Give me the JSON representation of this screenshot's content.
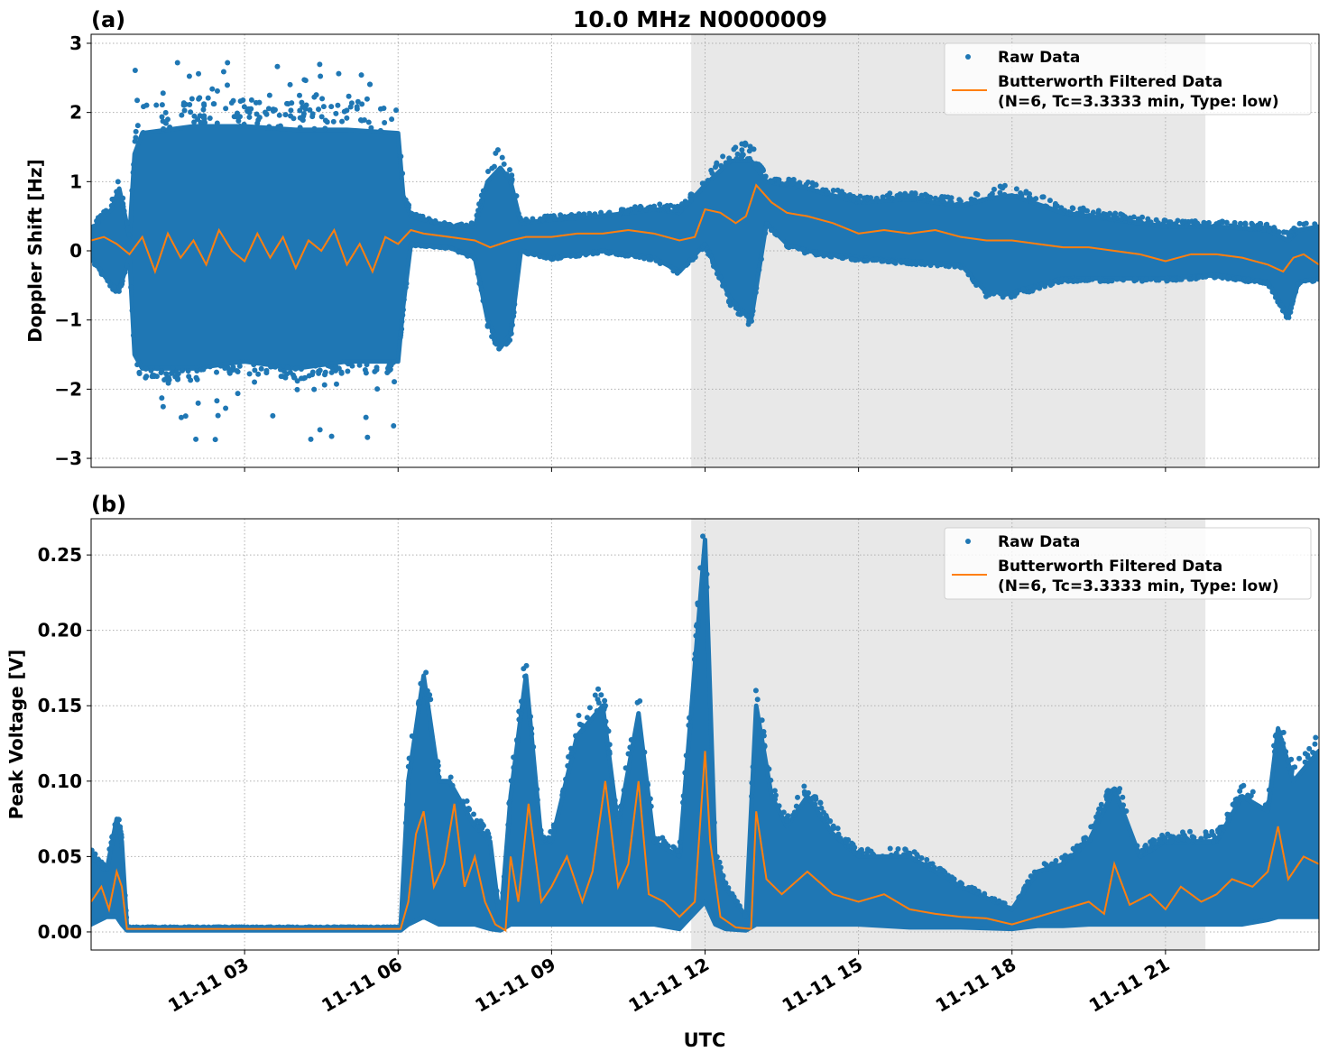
{
  "title": "10.0 MHz N0000009",
  "xlabel": "UTC",
  "colors": {
    "raw": "#1f77b4",
    "filtered": "#ff7f0e",
    "shade": "#e8e8e8"
  },
  "chart_data": [
    {
      "type": "scatter+line",
      "panel_label": "(a)",
      "ylabel": "Doppler Shift [Hz]",
      "xlim_hours_utc": [
        0,
        24
      ],
      "ylim": [
        -3.13,
        3.13
      ],
      "yticks": [
        3,
        2,
        1,
        0,
        -1,
        -2,
        -3
      ],
      "ytick_labels": [
        "3",
        "2",
        "1",
        "0",
        "−1",
        "−2",
        "−3"
      ],
      "xticks_hours": [
        3,
        6,
        9,
        12,
        15,
        18,
        21
      ],
      "xtick_labels": [
        "11-11 03",
        "11-11 06",
        "11-11 09",
        "11-11 12",
        "11-11 15",
        "11-11 18",
        "11-11 21"
      ],
      "grid": true,
      "shaded_interval_hours": [
        11.73,
        21.78
      ],
      "legend": {
        "placement": "top-right",
        "entries": [
          "Raw Data",
          "Butterworth Filtered Data",
          "(N=6, Tc=3.3333 min, Type: low)"
        ]
      },
      "raw_envelope": {
        "x": [
          0,
          0.4,
          0.55,
          0.75,
          0.85,
          1,
          2,
          3,
          4,
          5,
          6,
          6.1,
          6.25,
          7,
          7.5,
          7.75,
          8,
          8.2,
          8.4,
          9,
          10,
          11,
          11.5,
          12,
          12.5,
          12.9,
          13.2,
          13.6,
          14,
          15,
          16,
          17,
          17.5,
          18,
          19,
          20,
          21,
          22,
          23,
          23.4,
          23.6,
          24
        ],
        "low": [
          -0.1,
          -0.5,
          -0.55,
          -0.1,
          -1.5,
          -1.7,
          -1.7,
          -1.6,
          -1.7,
          -1.6,
          -1.6,
          -0.8,
          0.1,
          0.05,
          -0.1,
          -1.0,
          -1.4,
          -1.2,
          0.0,
          -0.1,
          0.0,
          -0.1,
          -0.3,
          0.1,
          -0.7,
          -1.0,
          0.4,
          0.1,
          0.0,
          -0.1,
          -0.15,
          -0.2,
          -0.6,
          -0.6,
          -0.4,
          -0.4,
          -0.4,
          -0.35,
          -0.45,
          -0.95,
          -0.45,
          -0.4
        ],
        "high": [
          0.3,
          0.6,
          0.9,
          0.2,
          1.4,
          1.7,
          1.8,
          1.8,
          1.75,
          1.75,
          1.7,
          0.8,
          0.5,
          0.35,
          0.35,
          1.0,
          1.2,
          1.0,
          0.4,
          0.45,
          0.5,
          0.6,
          0.55,
          0.95,
          1.3,
          1.3,
          1.0,
          0.95,
          0.9,
          0.7,
          0.75,
          0.65,
          0.75,
          0.8,
          0.55,
          0.45,
          0.35,
          0.35,
          0.3,
          0.15,
          0.3,
          0.35
        ],
        "outliers_low": -2.85,
        "outliers_high": 2.85
      },
      "filtered": {
        "x": [
          0,
          0.25,
          0.5,
          0.75,
          1.0,
          1.25,
          1.5,
          1.75,
          2.0,
          2.25,
          2.5,
          2.75,
          3.0,
          3.25,
          3.5,
          3.75,
          4.0,
          4.25,
          4.5,
          4.75,
          5.0,
          5.25,
          5.5,
          5.75,
          6.0,
          6.25,
          6.5,
          7.0,
          7.5,
          7.8,
          8.0,
          8.2,
          8.5,
          9.0,
          9.5,
          10.0,
          10.5,
          11.0,
          11.5,
          11.8,
          12.0,
          12.3,
          12.6,
          12.8,
          13.0,
          13.3,
          13.6,
          14.0,
          14.5,
          15.0,
          15.5,
          16.0,
          16.5,
          17.0,
          17.5,
          18.0,
          18.5,
          19.0,
          19.5,
          20.0,
          20.5,
          21.0,
          21.5,
          22.0,
          22.5,
          23.0,
          23.3,
          23.5,
          23.7,
          24.0
        ],
        "y": [
          0.15,
          0.2,
          0.1,
          -0.05,
          0.2,
          -0.3,
          0.25,
          -0.1,
          0.15,
          -0.2,
          0.3,
          0.0,
          -0.15,
          0.25,
          -0.1,
          0.2,
          -0.25,
          0.15,
          0.0,
          0.3,
          -0.2,
          0.1,
          -0.3,
          0.2,
          0.1,
          0.3,
          0.25,
          0.2,
          0.15,
          0.05,
          0.1,
          0.15,
          0.2,
          0.2,
          0.25,
          0.25,
          0.3,
          0.25,
          0.15,
          0.2,
          0.6,
          0.55,
          0.4,
          0.5,
          0.95,
          0.7,
          0.55,
          0.5,
          0.4,
          0.25,
          0.3,
          0.25,
          0.3,
          0.2,
          0.15,
          0.15,
          0.1,
          0.05,
          0.05,
          0.0,
          -0.05,
          -0.15,
          -0.05,
          -0.05,
          -0.1,
          -0.2,
          -0.3,
          -0.1,
          -0.05,
          -0.2
        ]
      }
    },
    {
      "type": "scatter+line",
      "panel_label": "(b)",
      "ylabel": "Peak Voltage [V]",
      "xlim_hours_utc": [
        0,
        24
      ],
      "ylim": [
        -0.012,
        0.274
      ],
      "yticks": [
        0.0,
        0.05,
        0.1,
        0.15,
        0.2,
        0.25
      ],
      "ytick_labels": [
        "0.00",
        "0.05",
        "0.10",
        "0.15",
        "0.20",
        "0.25"
      ],
      "xticks_hours": [
        3,
        6,
        9,
        12,
        15,
        18,
        21
      ],
      "xtick_labels": [
        "11-11 03",
        "11-11 06",
        "11-11 09",
        "11-11 12",
        "11-11 15",
        "11-11 18",
        "11-11 21"
      ],
      "grid": true,
      "shaded_interval_hours": [
        11.73,
        21.78
      ],
      "legend": {
        "placement": "top-right",
        "entries": [
          "Raw Data",
          "Butterworth Filtered Data",
          "(N=6, Tc=3.3333 min, Type: low)"
        ]
      },
      "raw_envelope": {
        "x": [
          0,
          0.3,
          0.5,
          0.6,
          0.7,
          6.05,
          6.2,
          6.5,
          6.8,
          7.0,
          7.5,
          7.8,
          8.0,
          8.2,
          8.5,
          8.8,
          9.0,
          9.5,
          10.0,
          10.3,
          10.7,
          11.0,
          11.5,
          12.0,
          12.2,
          12.4,
          12.8,
          13.0,
          13.3,
          13.6,
          14.0,
          14.5,
          15.0,
          16.0,
          17.0,
          18.0,
          18.5,
          19.0,
          19.5,
          20.0,
          20.5,
          21.0,
          21.5,
          22.0,
          22.5,
          23.0,
          23.2,
          23.5,
          24.0
        ],
        "low": [
          0.005,
          0.01,
          0.01,
          0.005,
          0.001,
          0.001,
          0.005,
          0.01,
          0.005,
          0.005,
          0.005,
          0.002,
          0.001,
          0.005,
          0.005,
          0.005,
          0.005,
          0.005,
          0.005,
          0.005,
          0.005,
          0.005,
          0.002,
          0.02,
          0.005,
          0.002,
          0.001,
          0.005,
          0.005,
          0.005,
          0.005,
          0.005,
          0.005,
          0.003,
          0.003,
          0.002,
          0.004,
          0.004,
          0.005,
          0.005,
          0.005,
          0.005,
          0.005,
          0.005,
          0.005,
          0.008,
          0.01,
          0.01,
          0.01
        ],
        "high": [
          0.05,
          0.04,
          0.075,
          0.06,
          0.003,
          0.003,
          0.1,
          0.17,
          0.1,
          0.1,
          0.07,
          0.06,
          0.005,
          0.09,
          0.17,
          0.06,
          0.06,
          0.13,
          0.15,
          0.07,
          0.145,
          0.06,
          0.05,
          0.26,
          0.05,
          0.03,
          0.01,
          0.15,
          0.09,
          0.07,
          0.09,
          0.065,
          0.05,
          0.05,
          0.03,
          0.015,
          0.04,
          0.045,
          0.06,
          0.095,
          0.05,
          0.06,
          0.06,
          0.06,
          0.09,
          0.08,
          0.135,
          0.1,
          0.12
        ]
      },
      "filtered": {
        "x": [
          0,
          0.2,
          0.35,
          0.5,
          0.6,
          0.7,
          6.05,
          6.2,
          6.35,
          6.5,
          6.7,
          6.9,
          7.1,
          7.3,
          7.5,
          7.7,
          7.9,
          8.1,
          8.2,
          8.35,
          8.55,
          8.8,
          9.0,
          9.3,
          9.6,
          9.8,
          10.05,
          10.3,
          10.5,
          10.7,
          10.9,
          11.2,
          11.5,
          11.8,
          12.0,
          12.1,
          12.3,
          12.6,
          12.9,
          13.0,
          13.2,
          13.5,
          14.0,
          14.5,
          15.0,
          15.5,
          16.0,
          16.5,
          17.0,
          17.5,
          18.0,
          18.5,
          19.0,
          19.5,
          19.8,
          20.0,
          20.3,
          20.7,
          21.0,
          21.3,
          21.7,
          22.0,
          22.3,
          22.7,
          23.0,
          23.2,
          23.4,
          23.7,
          24.0
        ],
        "y": [
          0.02,
          0.03,
          0.015,
          0.04,
          0.03,
          0.002,
          0.002,
          0.02,
          0.065,
          0.08,
          0.03,
          0.045,
          0.085,
          0.03,
          0.05,
          0.02,
          0.005,
          0.001,
          0.05,
          0.02,
          0.085,
          0.02,
          0.03,
          0.05,
          0.02,
          0.04,
          0.1,
          0.03,
          0.045,
          0.1,
          0.025,
          0.02,
          0.01,
          0.02,
          0.12,
          0.06,
          0.01,
          0.003,
          0.002,
          0.08,
          0.035,
          0.025,
          0.04,
          0.025,
          0.02,
          0.025,
          0.015,
          0.012,
          0.01,
          0.009,
          0.005,
          0.01,
          0.015,
          0.02,
          0.012,
          0.045,
          0.018,
          0.025,
          0.015,
          0.03,
          0.02,
          0.025,
          0.035,
          0.03,
          0.04,
          0.07,
          0.035,
          0.05,
          0.045
        ]
      }
    }
  ]
}
